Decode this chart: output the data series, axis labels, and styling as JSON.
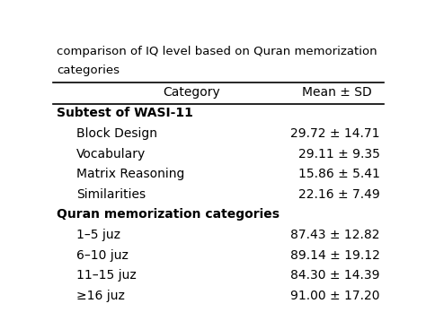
{
  "title_line1": "comparison of IQ level based on Quran memorization",
  "title_line2": "categories",
  "col1_header": "Category",
  "col2_header": "Mean ± SD",
  "section1_header": "Subtest of WASI-11",
  "section2_header": "Quran memorization categories",
  "rows": [
    {
      "category": "Block Design",
      "value": "29.72 ± 14.71"
    },
    {
      "category": "Vocabulary",
      "value": "29.11 ± 9.35"
    },
    {
      "category": "Matrix Reasoning",
      "value": "15.86 ± 5.41"
    },
    {
      "category": "Similarities",
      "value": "22.16 ± 7.49"
    },
    {
      "category": "1–5 juz",
      "value": "87.43 ± 12.82"
    },
    {
      "category": "6–10 juz",
      "value": "89.14 ± 19.12"
    },
    {
      "category": "11–15 juz",
      "value": "84.30 ± 14.39"
    },
    {
      "category": "≥16 juz",
      "value": "91.00 ± 17.20"
    }
  ],
  "bg_color": "#ffffff",
  "text_color": "#000000",
  "row_fontsize": 10,
  "title_fontsize": 9.5
}
